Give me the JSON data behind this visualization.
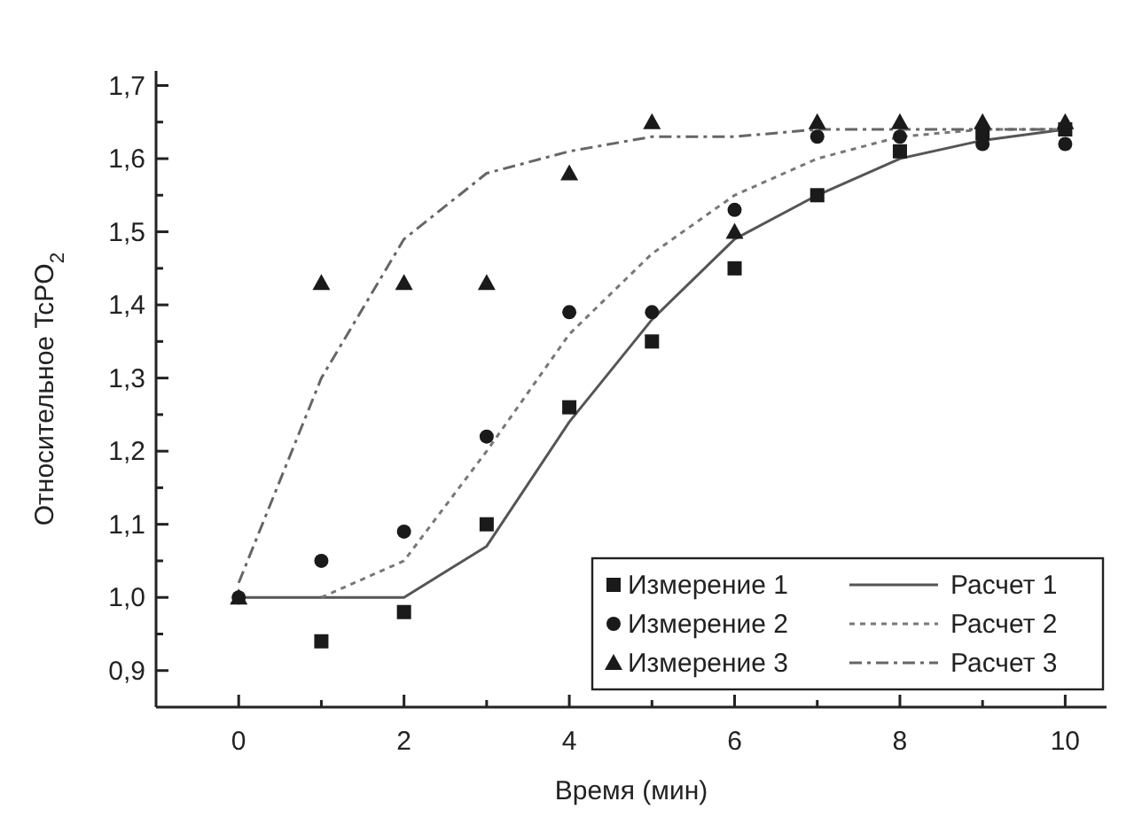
{
  "chart_data": {
    "type": "scatter",
    "xlabel": "Время (мин)",
    "ylabel": "Относительное TcPO$_{2}$",
    "x": [
      0,
      1,
      2,
      3,
      4,
      5,
      6,
      7,
      8,
      9,
      10
    ],
    "xlim": [
      -1,
      10.5
    ],
    "ylim": [
      0.85,
      1.72
    ],
    "xticks": [
      0,
      {
        "value": 1,
        "label": null
      },
      2,
      {
        "value": 3,
        "label": null
      },
      4,
      {
        "value": 5,
        "label": null
      },
      6,
      {
        "value": 7,
        "label": null
      },
      8,
      {
        "value": 9,
        "label": null
      },
      10
    ],
    "yticks": [
      {
        "value": 0.9,
        "label": "0,9"
      },
      {
        "value": 0.95,
        "label": null
      },
      {
        "value": 1.0,
        "label": "1,0"
      },
      {
        "value": 1.05,
        "label": null
      },
      {
        "value": 1.1,
        "label": "1,1"
      },
      {
        "value": 1.15,
        "label": null
      },
      {
        "value": 1.2,
        "label": "1,2"
      },
      {
        "value": 1.25,
        "label": null
      },
      {
        "value": 1.3,
        "label": "1,3"
      },
      {
        "value": 1.35,
        "label": null
      },
      {
        "value": 1.4,
        "label": "1,4"
      },
      {
        "value": 1.45,
        "label": null
      },
      {
        "value": 1.5,
        "label": "1,5"
      },
      {
        "value": 1.55,
        "label": null
      },
      {
        "value": 1.6,
        "label": "1,6"
      },
      {
        "value": 1.65,
        "label": null
      },
      {
        "value": 1.7,
        "label": "1,7"
      }
    ],
    "grid": false,
    "legend": "bottom right",
    "series": [
      {
        "name": "Измерение 1",
        "marker": "square",
        "color": "#1a1a1a",
        "values": [
          null,
          0.94,
          0.98,
          1.1,
          1.26,
          1.35,
          1.45,
          1.55,
          1.61,
          1.635,
          1.64
        ]
      },
      {
        "name": "Измерение 2",
        "marker": "circle",
        "color": "#1a1a1a",
        "values": [
          1.0,
          1.05,
          1.09,
          1.22,
          1.39,
          1.39,
          1.53,
          1.63,
          1.63,
          1.62,
          1.62
        ]
      },
      {
        "name": "Измерение 3",
        "marker": "triangle",
        "color": "#1a1a1a",
        "values": [
          1.0,
          1.43,
          1.43,
          1.43,
          1.58,
          1.65,
          1.5,
          1.65,
          1.65,
          1.65,
          1.65
        ]
      },
      {
        "name": "Расчет 1",
        "type": "line",
        "marker": "none",
        "line_style": "solid",
        "color": "#555555",
        "values": [
          1.0,
          1.0,
          1.0,
          1.07,
          1.24,
          1.38,
          1.49,
          1.55,
          1.6,
          1.625,
          1.64
        ]
      },
      {
        "name": "Расчет 2",
        "type": "line",
        "marker": "none",
        "line_style": "dotted",
        "color": "#777777",
        "x": [
          1,
          2,
          3,
          4,
          5,
          6,
          7,
          8,
          9,
          10
        ],
        "values": [
          1.0,
          1.05,
          1.2,
          1.36,
          1.47,
          1.55,
          1.6,
          1.63,
          1.64,
          1.64
        ]
      },
      {
        "name": "Расчет 3",
        "type": "line",
        "marker": "none",
        "line_style": "dashed",
        "color": "#666666",
        "values": [
          1.02,
          1.3,
          1.49,
          1.58,
          1.61,
          1.63,
          1.63,
          1.64,
          1.64,
          1.64,
          1.64
        ]
      }
    ]
  }
}
